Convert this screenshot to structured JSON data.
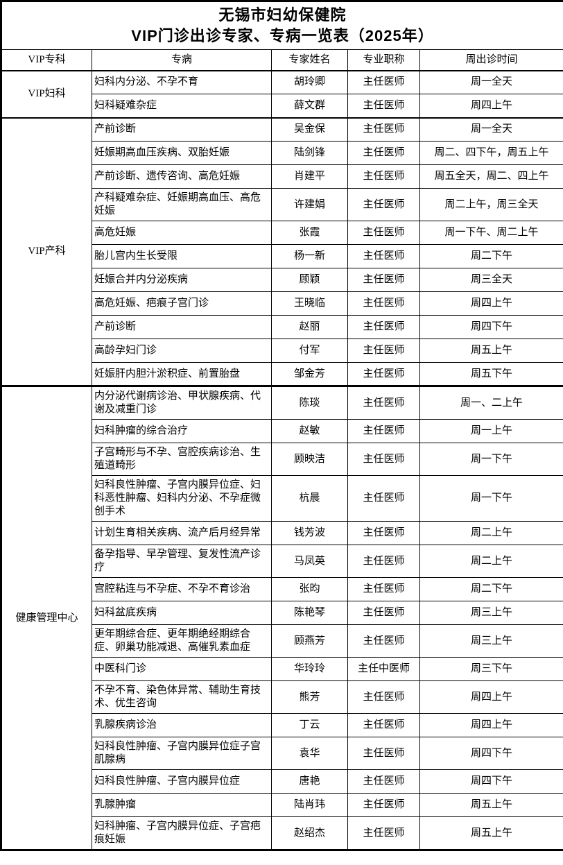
{
  "colors": {
    "text": "#000000",
    "background": "#ffffff",
    "border": "#000000"
  },
  "title": {
    "line1": "无锡市妇幼保健院",
    "line2": "VIP门诊出诊专家、专病一览表（2025年）"
  },
  "table": {
    "headers": [
      "VIP专科",
      "专病",
      "专家姓名",
      "专业职称",
      "周出诊时间"
    ],
    "sections": [
      {
        "department": "VIP妇科",
        "rows": [
          {
            "disease": "妇科内分泌、不孕不育",
            "doctor": "胡玲卿",
            "job_title": "主任医师",
            "schedule": "周一全天"
          },
          {
            "disease": "妇科疑难杂症",
            "doctor": "薛文群",
            "job_title": "主任医师",
            "schedule": "周四上午"
          }
        ]
      },
      {
        "department": "VIP产科",
        "rows": [
          {
            "disease": "产前诊断",
            "doctor": "吴金保",
            "job_title": "主任医师",
            "schedule": "周一全天"
          },
          {
            "disease": "妊娠期高血压疾病、双胎妊娠",
            "doctor": "陆剑锋",
            "job_title": "主任医师",
            "schedule": "周二、四下午，周五上午"
          },
          {
            "disease": "产前诊断、遗传咨询、高危妊娠",
            "doctor": "肖建平",
            "job_title": "主任医师",
            "schedule": "周五全天，周二、四上午"
          },
          {
            "disease": "产科疑难杂症、妊娠期高血压、高危妊娠",
            "doctor": "许建娟",
            "job_title": "主任医师",
            "schedule": "周二上午，周三全天"
          },
          {
            "disease": "高危妊娠",
            "doctor": "张霞",
            "job_title": "主任医师",
            "schedule": "周一下午、周二上午"
          },
          {
            "disease": "胎儿宫内生长受限",
            "doctor": "杨一新",
            "job_title": "主任医师",
            "schedule": "周二下午"
          },
          {
            "disease": "妊娠合并内分泌疾病",
            "doctor": "顾颖",
            "job_title": "主任医师",
            "schedule": "周三全天"
          },
          {
            "disease": "高危妊娠、疤痕子宫门诊",
            "doctor": "王晓临",
            "job_title": "主任医师",
            "schedule": "周四上午"
          },
          {
            "disease": "产前诊断",
            "doctor": "赵丽",
            "job_title": "主任医师",
            "schedule": "周四下午"
          },
          {
            "disease": "高龄孕妇门诊",
            "doctor": "付军",
            "job_title": "主任医师",
            "schedule": "周五上午"
          },
          {
            "disease": "妊娠肝内胆汁淤积症、前置胎盘",
            "doctor": "邹金芳",
            "job_title": "主任医师",
            "schedule": "周五下午"
          }
        ]
      },
      {
        "department": "健康管理中心",
        "rows": [
          {
            "disease": "内分泌代谢病诊治、甲状腺疾病、代谢及减重门诊",
            "doctor": "陈琰",
            "job_title": "主任医师",
            "schedule": "周一、二上午"
          },
          {
            "disease": "妇科肿瘤的综合治疗",
            "doctor": "赵敏",
            "job_title": "主任医师",
            "schedule": "周一上午"
          },
          {
            "disease": "子宫畸形与不孕、宫腔疾病诊治、生殖道畸形",
            "doctor": "顾映洁",
            "job_title": "主任医师",
            "schedule": "周一下午"
          },
          {
            "disease": "妇科良性肿瘤、子宫内膜异位症、妇科恶性肿瘤、妇科内分泌、不孕症微创手术",
            "doctor": "杭晨",
            "job_title": "主任医师",
            "schedule": "周一下午"
          },
          {
            "disease": "计划生育相关疾病、流产后月经异常",
            "doctor": "钱芳波",
            "job_title": "主任医师",
            "schedule": "周二上午"
          },
          {
            "disease": "备孕指导、早孕管理、复发性流产诊疗",
            "doctor": "马凤英",
            "job_title": "主任医师",
            "schedule": "周二上午"
          },
          {
            "disease": "宫腔粘连与不孕症、不孕不育诊治",
            "doctor": "张昀",
            "job_title": "主任医师",
            "schedule": "周二下午"
          },
          {
            "disease": "妇科盆底疾病",
            "doctor": "陈艳琴",
            "job_title": "主任医师",
            "schedule": "周三上午"
          },
          {
            "disease": "更年期综合症、更年期绝经期综合症、卵巢功能减退、高催乳素血症",
            "doctor": "顾燕芳",
            "job_title": "主任医师",
            "schedule": "周三上午"
          },
          {
            "disease": "中医科门诊",
            "doctor": "华玲玲",
            "job_title": "主任中医师",
            "schedule": "周三下午"
          },
          {
            "disease": "不孕不育、染色体异常、辅助生育技术、优生咨询",
            "doctor": "熊芳",
            "job_title": "主任医师",
            "schedule": "周四上午"
          },
          {
            "disease": "乳腺疾病诊治",
            "doctor": "丁云",
            "job_title": "主任医师",
            "schedule": "周四上午"
          },
          {
            "disease": "妇科良性肿瘤、子宫内膜异位症子宫肌腺病",
            "doctor": "袁华",
            "job_title": "主任医师",
            "schedule": "周四下午"
          },
          {
            "disease": "妇科良性肿瘤、子宫内膜异位症",
            "doctor": "唐艳",
            "job_title": "主任医师",
            "schedule": "周四下午"
          },
          {
            "disease": "乳腺肿瘤",
            "doctor": "陆肖玮",
            "job_title": "主任医师",
            "schedule": "周五上午"
          },
          {
            "disease": "妇科肿瘤、子宫内膜异位症、子宫疤痕妊娠",
            "doctor": "赵绍杰",
            "job_title": "主任医师",
            "schedule": "周五上午"
          }
        ]
      }
    ]
  }
}
